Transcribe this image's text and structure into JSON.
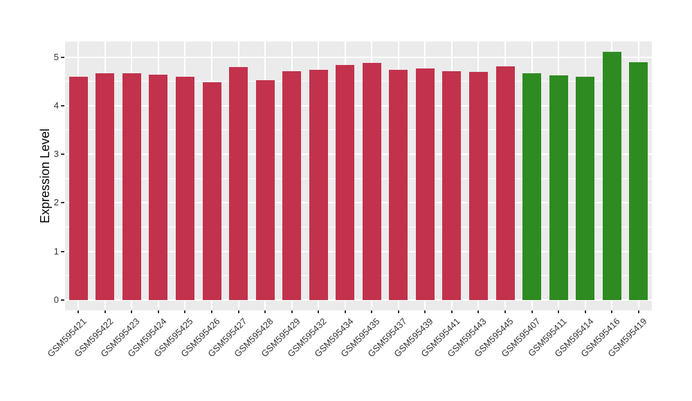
{
  "chart_data": {
    "type": "bar",
    "title": "",
    "xlabel": "",
    "ylabel": "Expression Level",
    "ylim": [
      -0.25,
      5.35
    ],
    "yticks": [
      0,
      1,
      2,
      3,
      4,
      5
    ],
    "minor_gridlines": [
      0.5,
      1.5,
      2.5,
      3.5,
      4.5
    ],
    "grid": true,
    "legend_position": "none",
    "categories": [
      "GSM595421",
      "GSM595422",
      "GSM595423",
      "GSM595424",
      "GSM595425",
      "GSM595426",
      "GSM595427",
      "GSM595428",
      "GSM595429",
      "GSM595432",
      "GSM595434",
      "GSM595435",
      "GSM595437",
      "GSM595439",
      "GSM595441",
      "GSM595443",
      "GSM595445",
      "GSM595407",
      "GSM595411",
      "GSM595414",
      "GSM595416",
      "GSM595419"
    ],
    "values": [
      4.6,
      4.67,
      4.66,
      4.64,
      4.59,
      4.48,
      4.79,
      4.52,
      4.71,
      4.73,
      4.84,
      4.88,
      4.74,
      4.77,
      4.71,
      4.7,
      4.81,
      4.66,
      4.63,
      4.59,
      5.1,
      4.89
    ],
    "groups": [
      "red",
      "red",
      "red",
      "red",
      "red",
      "red",
      "red",
      "red",
      "red",
      "red",
      "red",
      "red",
      "red",
      "red",
      "red",
      "red",
      "red",
      "green",
      "green",
      "green",
      "green",
      "green"
    ],
    "group_colors": {
      "red": "#C2324D",
      "green": "#2E8B21"
    },
    "panel_background": "#EBEBEB",
    "gridline_color": "#FFFFFF",
    "axis_text_color": "#333333",
    "axis_title_color": "#000000",
    "background": "#FFFFFF"
  }
}
